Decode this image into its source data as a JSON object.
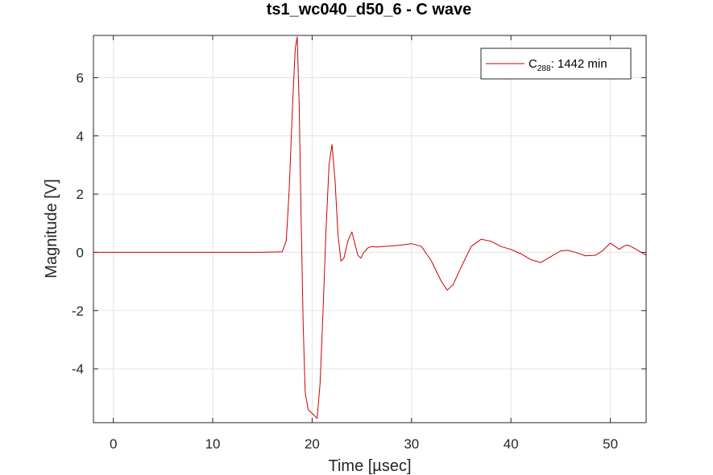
{
  "chart_data": {
    "type": "line",
    "title": "ts1_wc040_d50_6 - C wave",
    "xlabel": "Time [µsec]",
    "ylabel": "Magnitude [V]",
    "xlim": [
      -2,
      53.6
    ],
    "ylim": [
      -5.85,
      7.45
    ],
    "xticks": [
      0,
      10,
      20,
      30,
      40,
      50
    ],
    "xtick_labels": [
      "0",
      "10",
      "20",
      "30",
      "40",
      "50"
    ],
    "yticks": [
      -4,
      -2,
      0,
      2,
      4,
      6
    ],
    "ytick_labels": [
      "-4",
      "-2",
      "0",
      "2",
      "4",
      "6"
    ],
    "grid": true,
    "legend_position": "top-right",
    "colors": {
      "series": "#cc0000",
      "grid": "#e3e3e3",
      "axis": "#262626"
    },
    "series": [
      {
        "name": "C288: 1442 min",
        "name_main": "C",
        "name_sub": "288",
        "name_rest": ": 1442 min",
        "x": [
          -2,
          0,
          5,
          10,
          15,
          17,
          17.4,
          17.7,
          18.0,
          18.3,
          18.5,
          18.7,
          18.9,
          19.1,
          19.3,
          19.6,
          19.9,
          20.2,
          20.5,
          20.8,
          21.1,
          21.4,
          21.7,
          22.0,
          22.3,
          22.6,
          22.9,
          23.2,
          23.6,
          24.0,
          24.3,
          24.6,
          24.9,
          25.2,
          25.6,
          26.0,
          26.5,
          27,
          28,
          29,
          30,
          31,
          32,
          33,
          33.6,
          34.2,
          35,
          36,
          37,
          38,
          39,
          40,
          41,
          42,
          43,
          44,
          45,
          45.7,
          46.5,
          47.5,
          48.5,
          49.2,
          50.0,
          50.5,
          50.9,
          51.3,
          51.7,
          52.1,
          52.6,
          53.1,
          53.6
        ],
        "y": [
          0,
          0,
          0,
          0,
          0,
          0.02,
          0.4,
          2.2,
          4.8,
          7.0,
          7.4,
          5.0,
          1.0,
          -2.5,
          -4.8,
          -5.4,
          -5.5,
          -5.6,
          -5.7,
          -4.5,
          -2.0,
          0.8,
          3.0,
          3.7,
          2.5,
          0.6,
          -0.3,
          -0.2,
          0.4,
          0.7,
          0.3,
          -0.1,
          -0.2,
          0.0,
          0.15,
          0.2,
          0.18,
          0.2,
          0.22,
          0.25,
          0.3,
          0.2,
          -0.3,
          -1.0,
          -1.3,
          -1.1,
          -0.5,
          0.2,
          0.45,
          0.38,
          0.2,
          0.1,
          -0.05,
          -0.25,
          -0.35,
          -0.15,
          0.05,
          0.07,
          0.0,
          -0.12,
          -0.1,
          0.05,
          0.32,
          0.2,
          0.1,
          0.2,
          0.25,
          0.2,
          0.1,
          0.0,
          -0.1
        ]
      }
    ]
  }
}
